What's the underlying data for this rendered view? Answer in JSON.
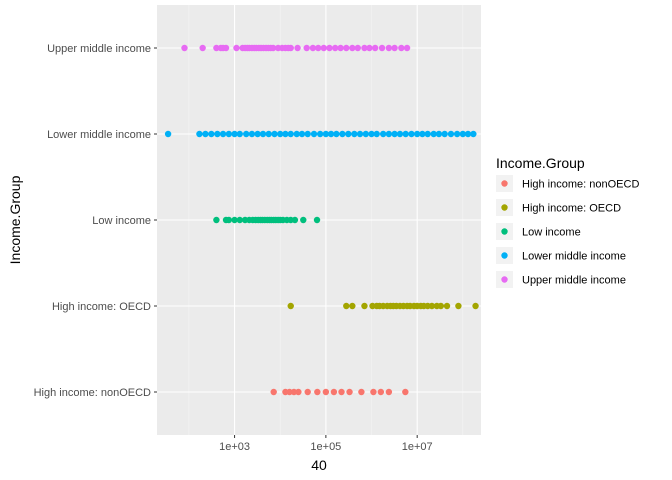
{
  "chart_data": {
    "type": "scatter",
    "title": "",
    "xlabel": "40",
    "ylabel": "Income.Group",
    "x_scale": "log10",
    "xlim": [
      20,
      250000000
    ],
    "x_ticks": [
      {
        "value": 1000,
        "label": "1e+03"
      },
      {
        "value": 100000,
        "label": "1e+05"
      },
      {
        "value": 10000000,
        "label": "1e+07"
      }
    ],
    "categories": [
      "High income: nonOECD",
      "High income: OECD",
      "Low income",
      "Lower middle income",
      "Upper middle income"
    ],
    "grid": true,
    "legend": {
      "title": "Income.Group",
      "placement": "right"
    },
    "series": [
      {
        "name": "High income: nonOECD",
        "color": "#F8766D",
        "x": [
          7200,
          13000,
          16000,
          20000,
          25000,
          40000,
          65000,
          100000,
          150000,
          220000,
          330000,
          600000,
          1100000,
          1600000,
          2400000,
          5500000
        ]
      },
      {
        "name": "High income: OECD",
        "color": "#A3A500",
        "x": [
          17000,
          280000,
          380000,
          700000,
          1050000,
          1300000,
          1500000,
          1800000,
          2200000,
          2600000,
          3000000,
          3500000,
          4200000,
          5000000,
          6000000,
          7000000,
          8500000,
          10000000,
          12000000,
          14000000,
          17000000,
          21000000,
          27000000,
          33000000,
          45000000,
          80000000,
          190000000
        ]
      },
      {
        "name": "Low income",
        "color": "#00BF7D",
        "x": [
          400,
          650,
          750,
          1000,
          1300,
          1700,
          2100,
          2500,
          2900,
          3300,
          3700,
          4100,
          4600,
          5200,
          5800,
          6400,
          7200,
          8000,
          9000,
          10000,
          11500,
          14000,
          17000,
          21000,
          32000,
          64000
        ]
      },
      {
        "name": "Lower middle income",
        "color": "#00B0F6",
        "x": [
          35,
          170,
          230,
          310,
          420,
          560,
          750,
          1000,
          1300,
          1800,
          2400,
          3200,
          4200,
          5600,
          7500,
          10000,
          13000,
          17000,
          23000,
          30000,
          40000,
          55000,
          75000,
          100000,
          130000,
          170000,
          230000,
          310000,
          420000,
          560000,
          750000,
          1000000,
          1300000,
          1800000,
          2400000,
          3200000,
          4200000,
          5600000,
          7500000,
          10000000,
          13000000,
          17000000,
          23000000,
          30000000,
          40000000,
          55000000,
          75000000,
          100000000,
          130000000,
          170000000
        ]
      },
      {
        "name": "Upper middle income",
        "color": "#E76BF3",
        "x": [
          80,
          200,
          400,
          500,
          560,
          650,
          1100,
          1500,
          1700,
          1900,
          2100,
          2400,
          2700,
          3000,
          3400,
          3800,
          4300,
          4900,
          5500,
          6200,
          7000,
          9000,
          11000,
          13000,
          15000,
          17000,
          24000,
          38000,
          52000,
          68000,
          90000,
          120000,
          160000,
          210000,
          280000,
          380000,
          500000,
          700000,
          900000,
          1200000,
          1700000,
          2400000,
          3200000,
          4500000,
          6000000
        ]
      }
    ]
  }
}
